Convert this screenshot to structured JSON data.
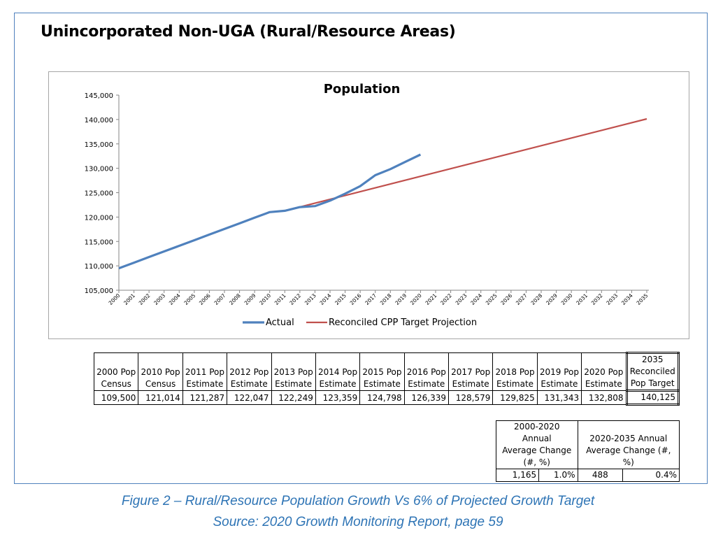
{
  "page": {
    "title": "Unincorporated Non-UGA (Rural/Resource Areas)",
    "caption_line1": "Figure 2 – Rural/Resource Population Growth Vs 6% of Projected Growth Target",
    "caption_line2": "Source: 2020 Growth Monitoring Report, page 59"
  },
  "colors": {
    "actual": "#4f81bd",
    "projection": "#c0504d",
    "frame": "#4f81bd",
    "caption": "#2e74b5"
  },
  "chart_data": {
    "type": "line",
    "title": "Population",
    "ylim": [
      105000,
      145000
    ],
    "yticks": [
      105000,
      110000,
      115000,
      120000,
      125000,
      130000,
      135000,
      140000,
      145000
    ],
    "ytick_labels": [
      "105,000",
      "110,000",
      "115,000",
      "120,000",
      "125,000",
      "130,000",
      "135,000",
      "140,000",
      "145,000"
    ],
    "x": [
      "2000",
      "2001",
      "2002",
      "2003",
      "2004",
      "2005",
      "2006",
      "2007",
      "2008",
      "2009",
      "2010",
      "2011",
      "2012",
      "2013",
      "2014",
      "2015",
      "2016",
      "2017",
      "2018",
      "2019",
      "2020",
      "2021",
      "2022",
      "2023",
      "2024",
      "2025",
      "2026",
      "2027",
      "2028",
      "2029",
      "2030",
      "2031",
      "2032",
      "2033",
      "2034",
      "2035"
    ],
    "grid": false,
    "legend_position": "bottom",
    "series": [
      {
        "name": "Actual",
        "x": [
          2000,
          2001,
          2002,
          2003,
          2004,
          2005,
          2006,
          2007,
          2008,
          2009,
          2010,
          2011,
          2012,
          2013,
          2014,
          2015,
          2016,
          2017,
          2018,
          2019,
          2020
        ],
        "values": [
          109500,
          110651,
          111803,
          112954,
          114106,
          115257,
          116408,
          117560,
          118711,
          119863,
          121014,
          121287,
          122047,
          122249,
          123359,
          124798,
          126339,
          128579,
          129825,
          131343,
          132808
        ]
      },
      {
        "name": "Reconciled CPP Target Projection",
        "x": [
          2011,
          2035
        ],
        "values": [
          121287,
          140125
        ]
      }
    ]
  },
  "pop_table": {
    "headers": [
      [
        "2000 Pop",
        "Census"
      ],
      [
        "2010 Pop",
        "Census"
      ],
      [
        "2011 Pop",
        "Estimate"
      ],
      [
        "2012 Pop",
        "Estimate"
      ],
      [
        "2013 Pop",
        "Estimate"
      ],
      [
        "2014 Pop",
        "Estimate"
      ],
      [
        "2015 Pop",
        "Estimate"
      ],
      [
        "2016 Pop",
        "Estimate"
      ],
      [
        "2017 Pop",
        "Estimate"
      ],
      [
        "2018 Pop",
        "Estimate"
      ],
      [
        "2019 Pop",
        "Estimate"
      ],
      [
        "2020 Pop",
        "Estimate"
      ],
      [
        "2035",
        "Reconciled",
        "Pop Target"
      ]
    ],
    "values": [
      "109,500",
      "121,014",
      "121,287",
      "122,047",
      "122,249",
      "123,359",
      "124,798",
      "126,339",
      "128,579",
      "129,825",
      "131,343",
      "132,808",
      "140,125"
    ]
  },
  "change_table": {
    "header1": [
      "2000-2020 Annual",
      "Average Change",
      "(#, %)"
    ],
    "header2": [
      "2020-2035 Annual",
      "Average Change (#, %)"
    ],
    "values": [
      "1,165",
      "1.0%",
      "488",
      "0.4%"
    ]
  }
}
